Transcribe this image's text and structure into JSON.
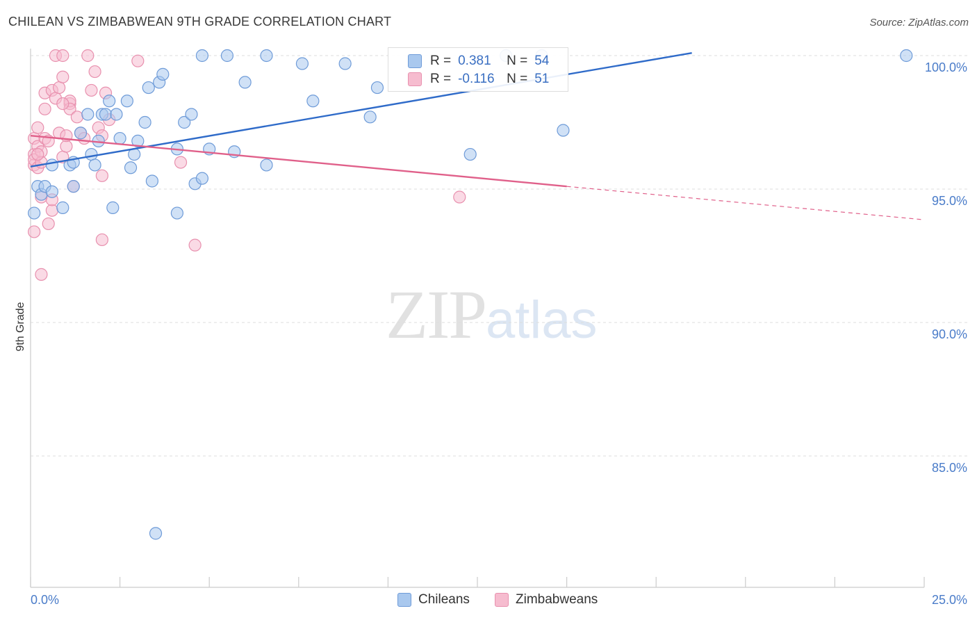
{
  "header": {
    "title": "CHILEAN VS ZIMBABWEAN 9TH GRADE CORRELATION CHART",
    "source": "Source: ZipAtlas.com"
  },
  "watermark": {
    "zip": "ZIP",
    "atlas": "atlas"
  },
  "legend": {
    "rows": [
      {
        "r_label": "R =",
        "r_value": "0.381",
        "n_label": "N =",
        "n_value": "54"
      },
      {
        "r_label": "R =",
        "r_value": "-0.116",
        "n_label": "N =",
        "n_value": "51"
      }
    ]
  },
  "bottom_legend": {
    "series_a": "Chileans",
    "series_b": "Zimbabweans"
  },
  "colors": {
    "blue_fill": "#a9c8ee",
    "blue_stroke": "#6e9bd8",
    "blue_line": "#2f6bc9",
    "pink_fill": "#f6bccf",
    "pink_stroke": "#e890ae",
    "pink_line": "#e0608a",
    "tick_text": "#4a7cc9",
    "grid": "#dddddd"
  },
  "chart_data": {
    "type": "scatter",
    "title": "CHILEAN VS ZIMBABWEAN 9TH GRADE CORRELATION CHART",
    "xlabel": "",
    "ylabel": "9th Grade",
    "xlim": [
      0,
      25
    ],
    "ylim": [
      80.4,
      100.9
    ],
    "x_tick_labels": [
      "0.0%",
      "25.0%"
    ],
    "y_ticks": [
      100,
      95,
      90,
      85
    ],
    "y_tick_labels": [
      "100.0%",
      "95.0%",
      "90.0%",
      "85.0%"
    ],
    "grid": true,
    "legend_position": "top-center",
    "series": [
      {
        "name": "Chileans",
        "R": 0.381,
        "N": 54,
        "trend": {
          "x": [
            0,
            18.5
          ],
          "y": [
            95.84,
            100.1
          ]
        },
        "points": [
          [
            0.2,
            95.1
          ],
          [
            0.3,
            94.8
          ],
          [
            0.4,
            95.1
          ],
          [
            0.6,
            94.9
          ],
          [
            0.6,
            95.9
          ],
          [
            0.9,
            94.3
          ],
          [
            1.1,
            95.9
          ],
          [
            1.2,
            96.0
          ],
          [
            1.2,
            95.1
          ],
          [
            1.4,
            97.1
          ],
          [
            1.6,
            97.8
          ],
          [
            1.7,
            96.3
          ],
          [
            1.8,
            95.9
          ],
          [
            1.9,
            96.8
          ],
          [
            2.0,
            97.8
          ],
          [
            2.1,
            97.8
          ],
          [
            2.2,
            98.3
          ],
          [
            2.3,
            94.3
          ],
          [
            2.4,
            97.8
          ],
          [
            2.5,
            96.9
          ],
          [
            2.7,
            98.3
          ],
          [
            2.8,
            95.8
          ],
          [
            2.9,
            96.3
          ],
          [
            3.0,
            96.8
          ],
          [
            3.2,
            97.5
          ],
          [
            3.3,
            98.8
          ],
          [
            3.4,
            95.3
          ],
          [
            3.6,
            99.0
          ],
          [
            3.7,
            99.3
          ],
          [
            4.1,
            94.1
          ],
          [
            4.1,
            96.5
          ],
          [
            4.3,
            97.5
          ],
          [
            4.5,
            97.8
          ],
          [
            4.6,
            95.2
          ],
          [
            4.8,
            95.4
          ],
          [
            5.0,
            96.5
          ],
          [
            4.8,
            100.0
          ],
          [
            5.5,
            100.0
          ],
          [
            5.7,
            96.4
          ],
          [
            6.0,
            99.0
          ],
          [
            6.6,
            100.0
          ],
          [
            6.6,
            95.9
          ],
          [
            7.6,
            99.7
          ],
          [
            7.9,
            98.3
          ],
          [
            8.8,
            99.7
          ],
          [
            9.5,
            97.7
          ],
          [
            9.7,
            98.8
          ],
          [
            12.3,
            96.3
          ],
          [
            13.3,
            100.0
          ],
          [
            14.3,
            100.0
          ],
          [
            14.9,
            97.2
          ],
          [
            24.5,
            100.0
          ],
          [
            0.1,
            94.1
          ],
          [
            3.5,
            82.1
          ]
        ]
      },
      {
        "name": "Zimbabweans",
        "R": -0.116,
        "N": 51,
        "trend": {
          "x": [
            0,
            15.0
          ],
          "y": [
            97.0,
            95.1
          ]
        },
        "trend_dashed": {
          "x": [
            15.0,
            25.0
          ],
          "y": [
            95.1,
            93.85
          ]
        },
        "points": [
          [
            0.1,
            96.9
          ],
          [
            0.1,
            96.3
          ],
          [
            0.1,
            95.9
          ],
          [
            0.1,
            96.1
          ],
          [
            0.2,
            97.3
          ],
          [
            0.2,
            96.6
          ],
          [
            0.2,
            95.8
          ],
          [
            0.3,
            96.4
          ],
          [
            0.3,
            96.0
          ],
          [
            0.3,
            94.7
          ],
          [
            0.4,
            98.0
          ],
          [
            0.4,
            98.6
          ],
          [
            0.4,
            96.9
          ],
          [
            0.5,
            96.8
          ],
          [
            0.5,
            93.7
          ],
          [
            0.6,
            94.2
          ],
          [
            0.6,
            94.6
          ],
          [
            0.6,
            98.7
          ],
          [
            0.7,
            98.4
          ],
          [
            0.7,
            100.0
          ],
          [
            0.8,
            97.1
          ],
          [
            0.8,
            98.8
          ],
          [
            0.9,
            96.2
          ],
          [
            0.9,
            100.0
          ],
          [
            0.9,
            99.2
          ],
          [
            1.0,
            96.6
          ],
          [
            1.0,
            97.0
          ],
          [
            1.1,
            98.2
          ],
          [
            1.1,
            98.3
          ],
          [
            1.1,
            98.0
          ],
          [
            1.2,
            95.1
          ],
          [
            1.3,
            97.7
          ],
          [
            1.4,
            97.1
          ],
          [
            1.5,
            96.9
          ],
          [
            1.6,
            100.0
          ],
          [
            1.7,
            98.7
          ],
          [
            1.8,
            99.4
          ],
          [
            1.9,
            97.3
          ],
          [
            2.0,
            97.0
          ],
          [
            2.0,
            95.5
          ],
          [
            2.1,
            98.6
          ],
          [
            2.2,
            97.6
          ],
          [
            2.0,
            93.1
          ],
          [
            3.0,
            99.8
          ],
          [
            4.2,
            96.0
          ],
          [
            4.6,
            92.9
          ],
          [
            12.0,
            94.7
          ],
          [
            0.3,
            91.8
          ],
          [
            0.1,
            93.4
          ],
          [
            0.2,
            96.3
          ],
          [
            0.9,
            98.2
          ]
        ]
      }
    ]
  }
}
